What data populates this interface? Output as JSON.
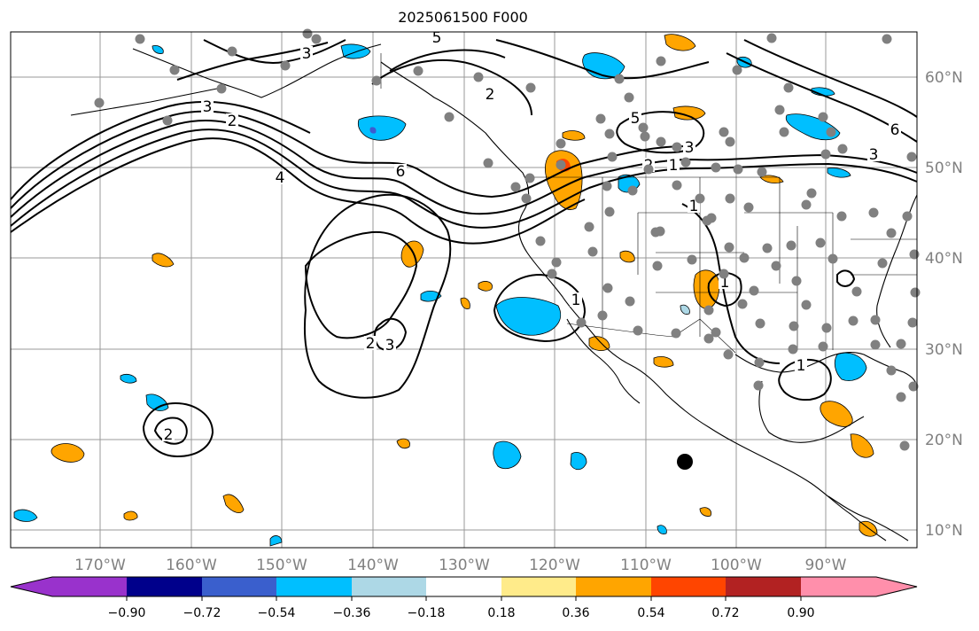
{
  "title": "2025061500 F000",
  "map": {
    "lon_labels": [
      "170°W",
      "160°W",
      "150°W",
      "140°W",
      "130°W",
      "120°W",
      "110°W",
      "100°W",
      "90°W"
    ],
    "lat_labels": [
      "60°N",
      "50°N",
      "40°N",
      "30°N",
      "20°N",
      "10°N"
    ],
    "contour_labels": [
      "5",
      "3",
      "2",
      "2",
      "3",
      "4",
      "6",
      "5",
      "3",
      "1",
      "2",
      "1",
      "6",
      "3",
      "2",
      "3",
      "1",
      "2",
      "1",
      "1"
    ],
    "colors": {
      "land_coast": "#000000",
      "grid": "#808080",
      "contour": "#000000",
      "positive_fill": "#ffa500",
      "strong_positive_fill": "#ff4500",
      "negative_fill": "#00bfff",
      "weak_negative_fill": "#add8e6",
      "strong_negative_fill": "#3c5cd0",
      "station_marker": "#808080",
      "center_marker": "#000000"
    }
  },
  "colorbar": {
    "ticks": [
      "−0.90",
      "−0.72",
      "−0.54",
      "−0.36",
      "−0.18",
      "0.18",
      "0.36",
      "0.54",
      "0.72",
      "0.90"
    ],
    "colors": [
      "#9932cc",
      "#00008b",
      "#3a5fcd",
      "#00bfff",
      "#add8e6",
      "#ffffff",
      "#ffeb8a",
      "#ffa500",
      "#ff4500",
      "#b22222",
      "#ff8fab"
    ]
  }
}
